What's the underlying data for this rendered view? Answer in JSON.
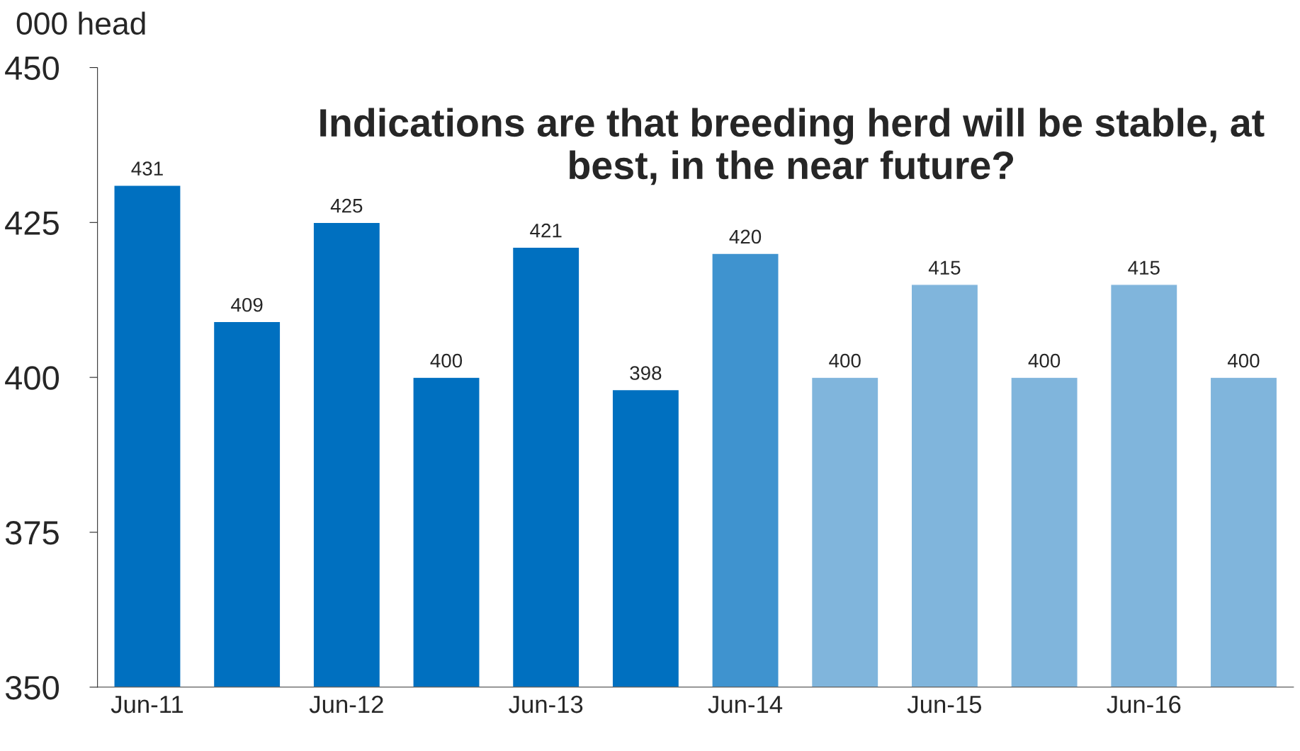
{
  "chart_data": {
    "type": "bar",
    "title": "Indications are that breeding herd will be stable, at best, in the near future?",
    "ylabel": "000 head",
    "categories": [
      "Jun-11",
      null,
      "Jun-12",
      null,
      "Jun-13",
      null,
      "Jun-14",
      null,
      "Jun-15",
      null,
      "Jun-16",
      null
    ],
    "values": [
      431,
      409,
      425,
      400,
      421,
      398,
      420,
      400,
      415,
      400,
      415,
      400
    ],
    "colors": [
      "#0070c0",
      "#0070c0",
      "#0070c0",
      "#0070c0",
      "#0070c0",
      "#0070c0",
      "#3f93cf",
      "#80b5dc",
      "#80b5dc",
      "#80b5dc",
      "#80b5dc",
      "#80b5dc"
    ],
    "ylim": [
      350,
      450
    ],
    "yticks": [
      350,
      375,
      400,
      425,
      450
    ],
    "data_labels": true,
    "grid": false
  }
}
